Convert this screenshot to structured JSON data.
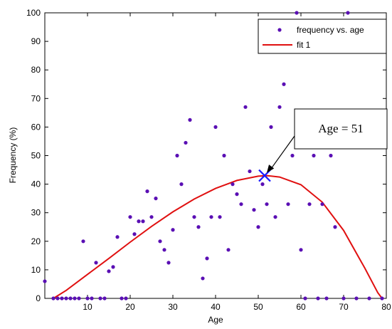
{
  "chart_data": {
    "type": "scatter",
    "xlabel": "Age",
    "ylabel": "Frequency (%)",
    "xlim": [
      0,
      80
    ],
    "ylim": [
      0,
      100
    ],
    "x_ticks": [
      10,
      20,
      30,
      40,
      50,
      60,
      70,
      80
    ],
    "y_ticks": [
      0,
      10,
      20,
      30,
      40,
      50,
      60,
      70,
      80,
      90,
      100
    ],
    "grid": false,
    "legend_position": "top-right",
    "colors": {
      "points": "#5a0fb4",
      "fit": "#e01010",
      "marker": "#1a1aff",
      "axes": "#000000"
    },
    "series": [
      {
        "name": "frequency vs. age",
        "kind": "points",
        "points": [
          [
            0,
            6
          ],
          [
            2,
            0
          ],
          [
            3,
            0
          ],
          [
            4,
            0
          ],
          [
            5,
            0
          ],
          [
            6,
            0
          ],
          [
            7,
            0
          ],
          [
            8,
            0
          ],
          [
            9,
            20
          ],
          [
            10,
            0
          ],
          [
            11,
            0
          ],
          [
            12,
            12.5
          ],
          [
            13,
            0
          ],
          [
            14,
            0
          ],
          [
            15,
            9.5
          ],
          [
            16,
            11
          ],
          [
            17,
            21.5
          ],
          [
            18,
            0
          ],
          [
            19,
            0
          ],
          [
            20,
            28.5
          ],
          [
            21,
            22.5
          ],
          [
            22,
            27
          ],
          [
            23,
            27
          ],
          [
            24,
            37.5
          ],
          [
            25,
            28.5
          ],
          [
            26,
            35
          ],
          [
            27,
            20
          ],
          [
            28,
            17
          ],
          [
            29,
            12.5
          ],
          [
            30,
            24
          ],
          [
            31,
            50
          ],
          [
            32,
            40
          ],
          [
            33,
            54.5
          ],
          [
            34,
            62.5
          ],
          [
            35,
            28.5
          ],
          [
            36,
            25
          ],
          [
            37,
            7
          ],
          [
            38,
            14
          ],
          [
            39,
            28.5
          ],
          [
            40,
            60
          ],
          [
            41,
            28.5
          ],
          [
            42,
            50
          ],
          [
            43,
            17
          ],
          [
            44,
            40
          ],
          [
            45,
            36.5
          ],
          [
            46,
            33
          ],
          [
            47,
            67
          ],
          [
            48,
            44.5
          ],
          [
            49,
            31
          ],
          [
            50,
            25
          ],
          [
            51,
            40
          ],
          [
            52,
            33
          ],
          [
            53,
            60
          ],
          [
            54,
            28.5
          ],
          [
            55,
            67
          ],
          [
            56,
            75
          ],
          [
            57,
            33
          ],
          [
            58,
            50
          ],
          [
            59,
            100
          ],
          [
            60,
            17
          ],
          [
            61,
            0
          ],
          [
            62,
            33
          ],
          [
            63,
            50
          ],
          [
            64,
            0
          ],
          [
            65,
            33
          ],
          [
            66,
            0
          ],
          [
            67,
            50
          ],
          [
            68,
            25
          ],
          [
            70,
            0
          ],
          [
            71,
            100
          ],
          [
            73,
            0
          ],
          [
            76,
            0
          ],
          [
            79,
            0
          ]
        ]
      },
      {
        "name": "fit 1",
        "kind": "line",
        "points": [
          [
            2,
            0
          ],
          [
            5,
            2.8
          ],
          [
            10,
            8.4
          ],
          [
            15,
            14
          ],
          [
            20,
            19.7
          ],
          [
            25,
            25.2
          ],
          [
            30,
            30.3
          ],
          [
            35,
            34.8
          ],
          [
            40,
            38.5
          ],
          [
            45,
            41.3
          ],
          [
            50,
            42.8
          ],
          [
            52,
            43
          ],
          [
            55,
            42.5
          ],
          [
            60,
            39.8
          ],
          [
            65,
            33.7
          ],
          [
            70,
            23.8
          ],
          [
            75,
            10.5
          ],
          [
            78,
            2
          ],
          [
            79,
            0
          ]
        ]
      }
    ],
    "highlight_point": {
      "x": 51.5,
      "y": 43,
      "marker": "x"
    },
    "annotation": {
      "text": "Age = 51",
      "arrow_to": {
        "x": 51.5,
        "y": 43
      }
    }
  }
}
